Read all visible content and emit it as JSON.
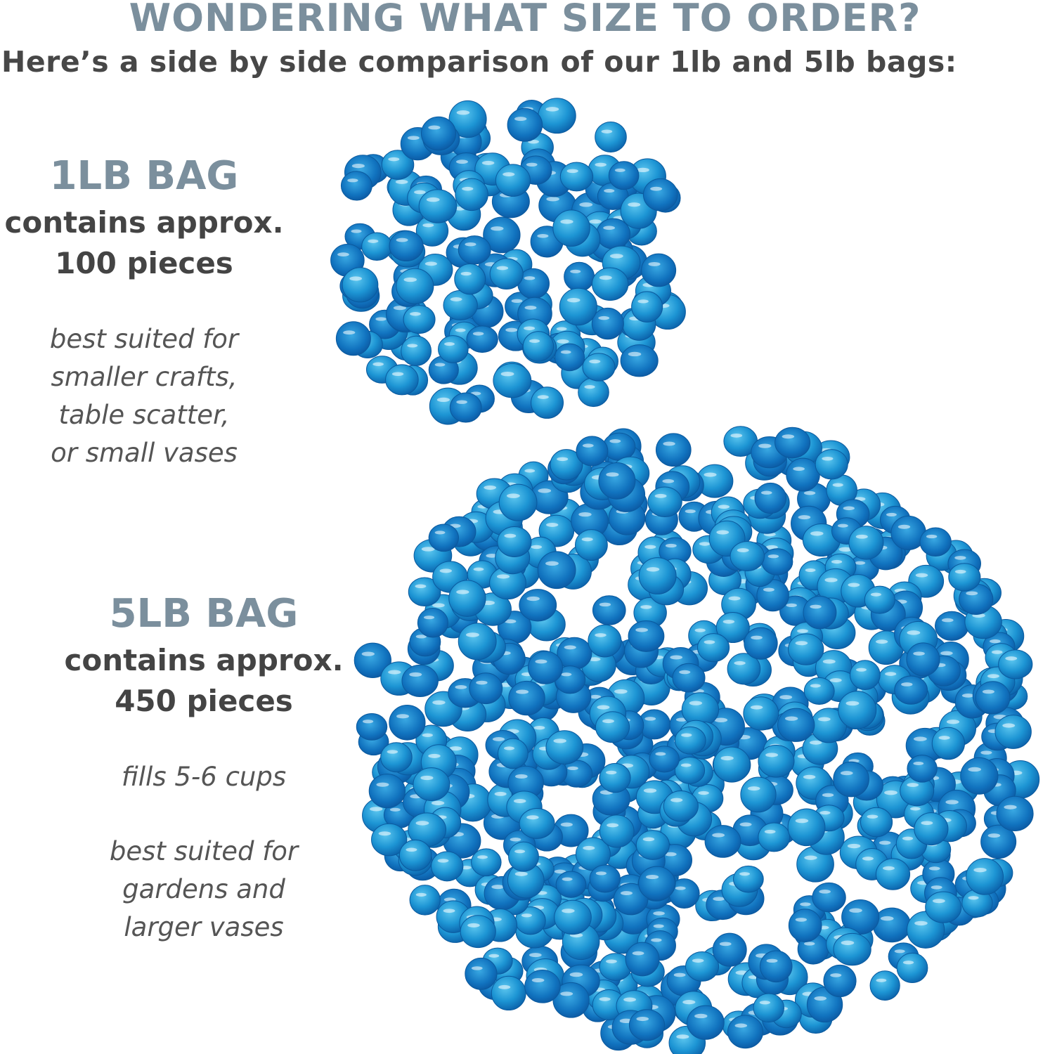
{
  "header": {
    "title": "WONDERING WHAT SIZE TO ORDER?",
    "subtitle": "Here’s a side by side comparison of our 1lb and 5lb bags:"
  },
  "bags": [
    {
      "label": "1LB BAG",
      "contains": "contains approx.",
      "pieces": "100 pieces",
      "notes": [
        "best suited for",
        "smaller crafts,",
        "table scatter,",
        "or small vases"
      ]
    },
    {
      "label": "5LB BAG",
      "contains": "contains approx.",
      "pieces": "450 pieces",
      "fill": "fills 5-6 cups",
      "notes": [
        "best suited for",
        "gardens and",
        "larger vases"
      ]
    }
  ],
  "colors": {
    "heading": "#7b8f9d",
    "text": "#444444",
    "glass": "#1e8fd0"
  }
}
